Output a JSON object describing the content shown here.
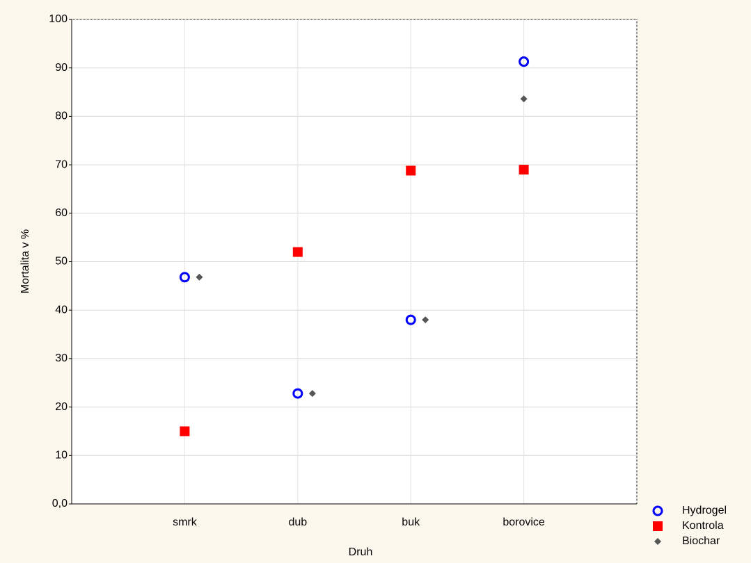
{
  "chart_data": {
    "type": "scatter",
    "x_label": "Druh",
    "y_label": "Mortalita v %",
    "categories": [
      "smrk",
      "dub",
      "buk",
      "borovice"
    ],
    "series": [
      {
        "name": "Hydrogel",
        "color": "#0000ff",
        "marker": "circle",
        "values": [
          46.8,
          22.8,
          38,
          91.3
        ]
      },
      {
        "name": "Kontrola",
        "color": "#ff0000",
        "marker": "square",
        "values": [
          15,
          52,
          68.8,
          69
        ]
      },
      {
        "name": "Biochar",
        "color": "#555555",
        "marker": "diamond",
        "values": [
          46.8,
          22.8,
          38,
          83.6
        ]
      }
    ],
    "ylim": [
      0,
      100
    ],
    "yticks": [
      {
        "value": 0,
        "label": "0,0"
      },
      10,
      20,
      30,
      40,
      50,
      60,
      70,
      80,
      90,
      100
    ],
    "grid": true,
    "legend": "bottom-right"
  }
}
